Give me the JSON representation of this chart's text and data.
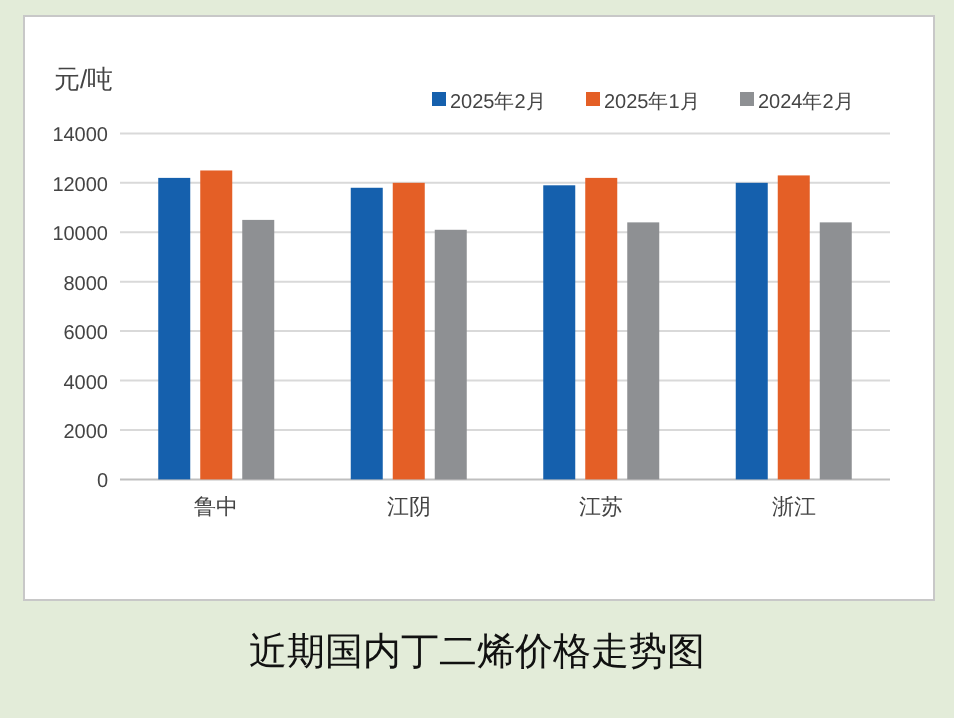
{
  "chart_data": {
    "type": "bar",
    "title": "近期国内丁二烯价格走势图",
    "ylabel": "元/吨",
    "categories": [
      "鲁中",
      "江阴",
      "江苏",
      "浙江"
    ],
    "series": [
      {
        "name": "2025年2月",
        "color": "#1560ad",
        "values": [
          12200,
          11800,
          11900,
          12000
        ]
      },
      {
        "name": "2025年1月",
        "color": "#e45f26",
        "values": [
          12500,
          12000,
          12200,
          12300
        ]
      },
      {
        "name": "2024年2月",
        "color": "#8e9093",
        "values": [
          10500,
          10100,
          10400,
          10400
        ]
      }
    ],
    "ylim": [
      0,
      14000
    ],
    "yticks": [
      0,
      2000,
      4000,
      6000,
      8000,
      10000,
      12000,
      14000
    ],
    "grid": "y",
    "legend": "top right"
  }
}
